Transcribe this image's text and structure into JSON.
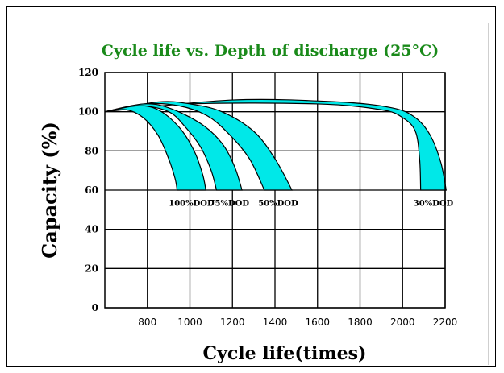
{
  "chart_data": {
    "type": "area",
    "title": "Cycle life vs. Depth of discharge (25°C)",
    "xlabel": "Cycle life(times)",
    "ylabel": "Capacity (%)",
    "xlim": [
      600,
      2200
    ],
    "ylim": [
      0,
      120
    ],
    "x_ticks": [
      800,
      1000,
      1200,
      1400,
      1600,
      1800,
      2000,
      2200
    ],
    "y_ticks": [
      0,
      20,
      40,
      60,
      80,
      100,
      120
    ],
    "grid": true,
    "legend": "none",
    "band_color": "#00e8e8",
    "series": [
      {
        "name": "100%DOD",
        "upper": [
          [
            600,
            100
          ],
          [
            750,
            103
          ],
          [
            850,
            101
          ],
          [
            950,
            92
          ],
          [
            1020,
            80
          ],
          [
            1060,
            68
          ],
          [
            1075,
            60
          ]
        ],
        "lower": [
          [
            600,
            100
          ],
          [
            700,
            101
          ],
          [
            780,
            97
          ],
          [
            850,
            88
          ],
          [
            900,
            76
          ],
          [
            930,
            66
          ],
          [
            940,
            60
          ]
        ]
      },
      {
        "name": "75%DOD",
        "upper": [
          [
            600,
            100
          ],
          [
            780,
            104
          ],
          [
            900,
            102
          ],
          [
            1050,
            94
          ],
          [
            1150,
            84
          ],
          [
            1210,
            72
          ],
          [
            1245,
            60
          ]
        ],
        "lower": [
          [
            600,
            100
          ],
          [
            760,
            103
          ],
          [
            900,
            100
          ],
          [
            980,
            92
          ],
          [
            1050,
            82
          ],
          [
            1100,
            70
          ],
          [
            1125,
            60
          ]
        ]
      },
      {
        "name": "50%DOD",
        "upper": [
          [
            600,
            100
          ],
          [
            850,
            105
          ],
          [
            1000,
            104
          ],
          [
            1150,
            100
          ],
          [
            1300,
            90
          ],
          [
            1400,
            76
          ],
          [
            1480,
            60
          ]
        ],
        "lower": [
          [
            600,
            100
          ],
          [
            800,
            104
          ],
          [
            950,
            103
          ],
          [
            1080,
            98
          ],
          [
            1180,
            89
          ],
          [
            1280,
            76
          ],
          [
            1350,
            60
          ]
        ]
      },
      {
        "name": "30%DOD",
        "upper": [
          [
            600,
            100
          ],
          [
            1200,
            106
          ],
          [
            1700,
            105
          ],
          [
            1950,
            102
          ],
          [
            2060,
            97
          ],
          [
            2130,
            88
          ],
          [
            2180,
            74
          ],
          [
            2205,
            60
          ]
        ],
        "lower": [
          [
            600,
            100
          ],
          [
            1000,
            104
          ],
          [
            1600,
            104
          ],
          [
            1900,
            101
          ],
          [
            2000,
            97
          ],
          [
            2060,
            90
          ],
          [
            2080,
            76
          ],
          [
            2085,
            60
          ]
        ]
      }
    ]
  }
}
